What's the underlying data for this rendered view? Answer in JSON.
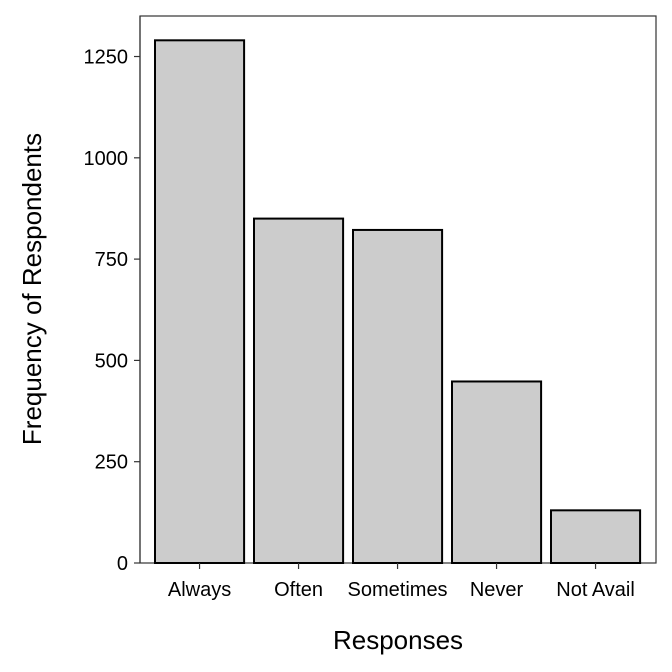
{
  "chart_data": {
    "type": "bar",
    "title": "",
    "xlabel": "Responses",
    "ylabel": "Frequency of Respondents",
    "categories": [
      "Always",
      "Often",
      "Sometimes",
      "Never",
      "Not Avail"
    ],
    "values": [
      1290,
      850,
      822,
      448,
      130
    ],
    "ylim": [
      0,
      1350
    ],
    "yticks": [
      0,
      250,
      500,
      750,
      1000,
      1250
    ],
    "ytick_labels": [
      "0",
      "250",
      "500",
      "750",
      "1000",
      "1250"
    ],
    "grid": false,
    "legend": "none",
    "colors": {
      "bar_fill": "#cccccc",
      "bar_stroke": "#000000",
      "panel_border": "#333333"
    }
  }
}
